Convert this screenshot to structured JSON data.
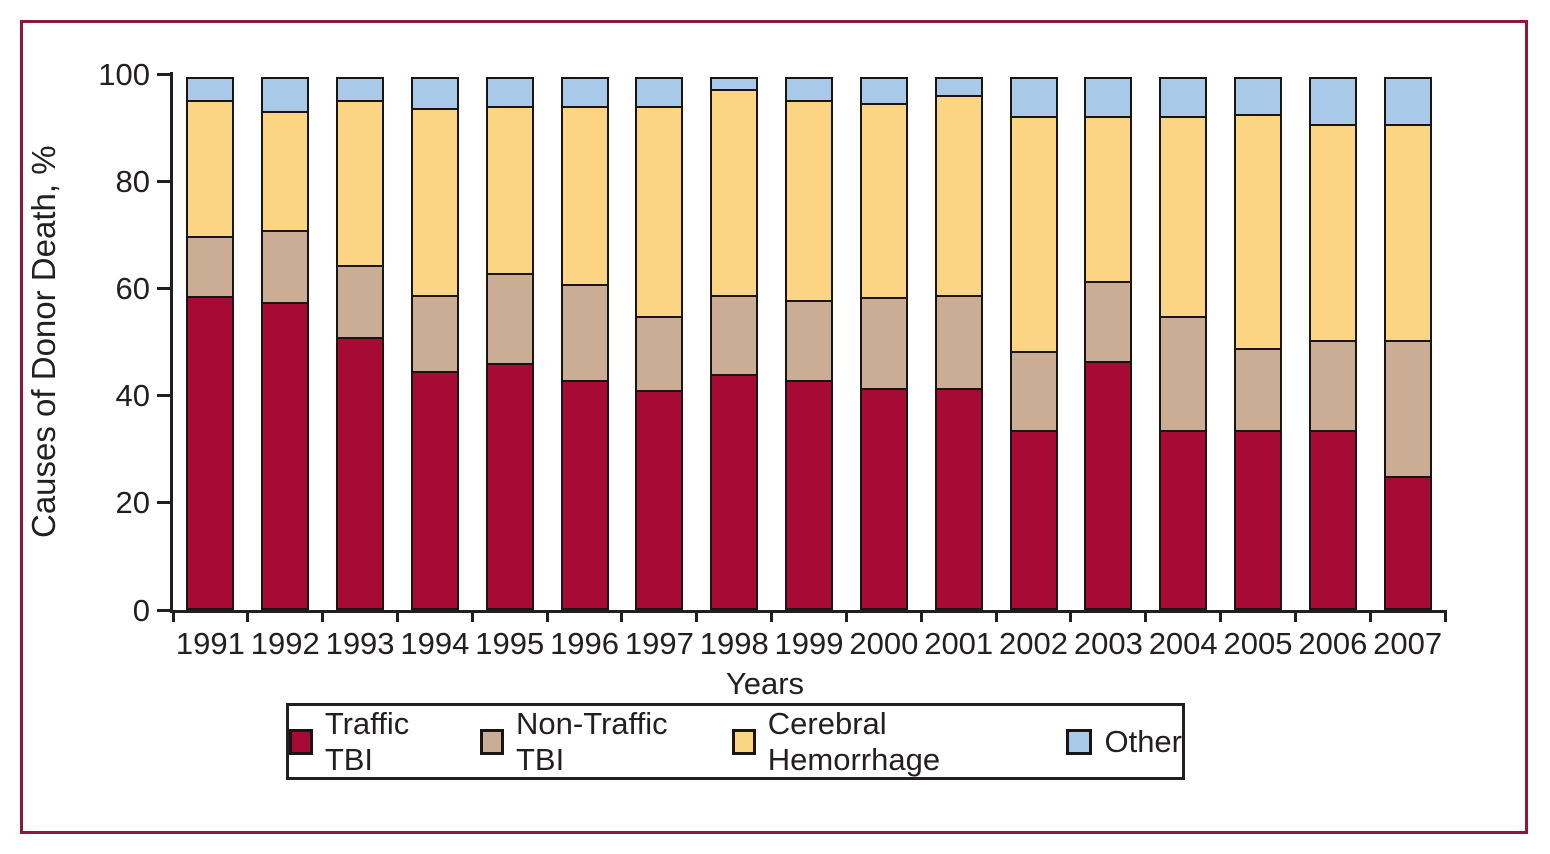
{
  "figure": {
    "frame_color": "#8E1638",
    "background": "#FFFFFF",
    "axis_color": "#231F20"
  },
  "chart_data": {
    "type": "bar",
    "stacked": true,
    "orientation": "vertical",
    "xlabel": "Years",
    "ylabel": "Causes of Donor Death, %",
    "ylim": [
      0,
      100
    ],
    "yticks": [
      0,
      20,
      40,
      60,
      80,
      100
    ],
    "grid": false,
    "legend_position": "bottom",
    "categories": [
      "1991",
      "1992",
      "1993",
      "1994",
      "1995",
      "1996",
      "1997",
      "1998",
      "1999",
      "2000",
      "2001",
      "2002",
      "2003",
      "2004",
      "2005",
      "2006",
      "2007"
    ],
    "series": [
      {
        "name": "Traffic TBI",
        "color": "#A80A36",
        "values": [
          58.5,
          57.5,
          51,
          44.5,
          46,
          43,
          41,
          44,
          43,
          41.5,
          41.5,
          33.5,
          46.5,
          33.5,
          33.5,
          33.5,
          25
        ]
      },
      {
        "name": "Non-Traffic TBI",
        "color": "#CBAD96",
        "values": [
          11.5,
          13.5,
          13.5,
          14.5,
          17,
          18,
          14,
          15,
          15,
          17,
          17.5,
          15,
          15,
          21.5,
          15.5,
          17,
          25.5
        ]
      },
      {
        "name": "Cerebral Hemorrhage",
        "color": "#FBD584",
        "values": [
          25.5,
          22.5,
          31,
          35,
          31.5,
          33.5,
          39.5,
          38.5,
          37.5,
          36.5,
          37.5,
          44,
          31,
          37.5,
          44,
          40.5,
          40.5
        ]
      },
      {
        "name": "Other",
        "color": "#A9C9E8",
        "values": [
          4.5,
          6.5,
          4.5,
          6,
          5.5,
          5.5,
          5.5,
          2.5,
          4.5,
          5,
          3.5,
          7.5,
          7.5,
          7.5,
          7,
          9,
          9
        ]
      }
    ]
  }
}
